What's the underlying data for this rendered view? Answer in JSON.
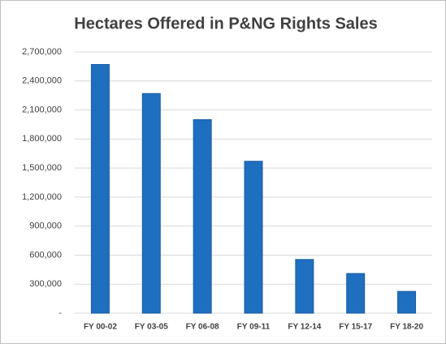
{
  "chart_data": {
    "type": "bar",
    "title": "Hectares Offered in P&NG Rights Sales",
    "categories": [
      "FY 00-02",
      "FY 03-05",
      "FY 06-08",
      "FY 09-11",
      "FY 12-14",
      "FY 15-17",
      "FY 18-20"
    ],
    "values": [
      2570000,
      2270000,
      2000000,
      1570000,
      555000,
      410000,
      225000
    ],
    "color": "#1f6fc1",
    "ylim": [
      0,
      2700000
    ],
    "yticks": [
      {
        "value": 0,
        "label": "-"
      },
      {
        "value": 300000,
        "label": "300,000"
      },
      {
        "value": 600000,
        "label": "600,000"
      },
      {
        "value": 900000,
        "label": "900,000"
      },
      {
        "value": 1200000,
        "label": "1,200,000"
      },
      {
        "value": 1500000,
        "label": "1,500,000"
      },
      {
        "value": 1800000,
        "label": "1,800,000"
      },
      {
        "value": 2100000,
        "label": "2,100,000"
      },
      {
        "value": 2400000,
        "label": "2,400,000"
      },
      {
        "value": 2700000,
        "label": "2,700,000"
      }
    ],
    "grid": true
  }
}
